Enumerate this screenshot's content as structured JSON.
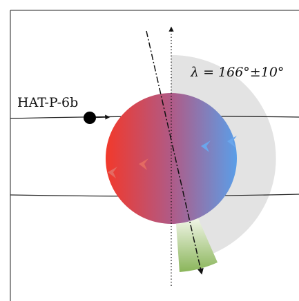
{
  "planet_label": "HAT-P-6b",
  "angle_label": "λ = 166°±10°"
}
